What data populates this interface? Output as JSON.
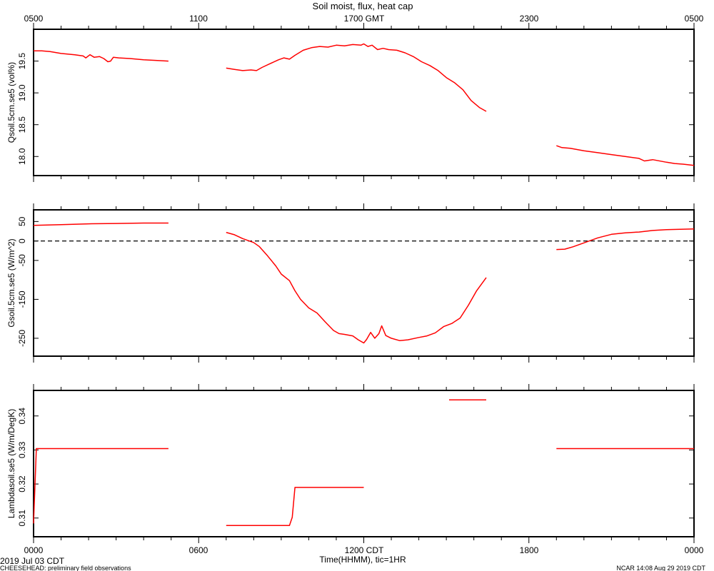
{
  "title": "Soil moist, flux, heat cap",
  "top_axis": {
    "labels": [
      "0500",
      "1100",
      "1700 GMT",
      "2300",
      "0500"
    ]
  },
  "bottom_axis": {
    "labels": [
      "0000",
      "0600",
      "1200 CDT",
      "1800",
      "0000"
    ],
    "label": "Time(HHMM), tic=1HR"
  },
  "footer": {
    "date": "2019 Jul 03 CDT",
    "project": "CHEESEHEAD: preliminary field observations",
    "stamp": "NCAR 14:08 Aug 29 2019 CDT"
  },
  "colors": {
    "series": "#ff0000",
    "axes": "#000000"
  },
  "chart_data": [
    {
      "type": "line",
      "ylabel": "Qsoil.5cm.se5 (vol%)",
      "x_unit": "hours since 0000 CDT",
      "xlim": [
        0,
        24
      ],
      "ylim": [
        17.7,
        20.0
      ],
      "yticks": [
        18.0,
        18.5,
        19.0,
        19.5
      ],
      "ytick_labels": [
        "18.0",
        "18.5",
        "19.0",
        "19.5"
      ],
      "segments": [
        [
          [
            0.0,
            19.66
          ],
          [
            0.3,
            19.66
          ],
          [
            0.6,
            19.65
          ],
          [
            1.0,
            19.62
          ],
          [
            1.5,
            19.6
          ],
          [
            1.8,
            19.58
          ],
          [
            1.9,
            19.55
          ],
          [
            2.05,
            19.6
          ],
          [
            2.2,
            19.56
          ],
          [
            2.4,
            19.57
          ],
          [
            2.55,
            19.54
          ],
          [
            2.7,
            19.49
          ],
          [
            2.8,
            19.5
          ],
          [
            2.9,
            19.56
          ],
          [
            3.1,
            19.55
          ],
          [
            3.5,
            19.54
          ],
          [
            4.0,
            19.52
          ],
          [
            4.5,
            19.51
          ],
          [
            4.9,
            19.5
          ]
        ],
        [
          [
            7.0,
            19.39
          ],
          [
            7.3,
            19.37
          ],
          [
            7.6,
            19.35
          ],
          [
            7.9,
            19.36
          ],
          [
            8.1,
            19.35
          ],
          [
            8.3,
            19.4
          ],
          [
            8.6,
            19.46
          ],
          [
            8.9,
            19.52
          ],
          [
            9.1,
            19.55
          ],
          [
            9.3,
            19.53
          ],
          [
            9.5,
            19.59
          ],
          [
            9.8,
            19.67
          ],
          [
            10.1,
            19.71
          ],
          [
            10.4,
            19.73
          ],
          [
            10.7,
            19.72
          ],
          [
            11.0,
            19.75
          ],
          [
            11.3,
            19.74
          ],
          [
            11.6,
            19.76
          ],
          [
            11.9,
            19.75
          ],
          [
            12.0,
            19.77
          ],
          [
            12.15,
            19.73
          ],
          [
            12.3,
            19.75
          ],
          [
            12.5,
            19.68
          ],
          [
            12.7,
            19.7
          ],
          [
            12.9,
            19.68
          ],
          [
            13.2,
            19.67
          ],
          [
            13.5,
            19.63
          ],
          [
            13.8,
            19.57
          ],
          [
            14.1,
            19.49
          ],
          [
            14.4,
            19.43
          ],
          [
            14.7,
            19.35
          ],
          [
            15.0,
            19.24
          ],
          [
            15.3,
            19.16
          ],
          [
            15.6,
            19.05
          ],
          [
            15.9,
            18.88
          ],
          [
            16.2,
            18.77
          ],
          [
            16.45,
            18.71
          ]
        ],
        [
          [
            19.0,
            18.17
          ],
          [
            19.2,
            18.14
          ],
          [
            19.5,
            18.13
          ],
          [
            20.0,
            18.09
          ],
          [
            20.5,
            18.06
          ],
          [
            21.0,
            18.03
          ],
          [
            21.5,
            18.0
          ],
          [
            22.0,
            17.97
          ],
          [
            22.2,
            17.93
          ],
          [
            22.5,
            17.95
          ],
          [
            23.0,
            17.91
          ],
          [
            23.3,
            17.89
          ],
          [
            23.6,
            17.88
          ],
          [
            24.0,
            17.86
          ]
        ]
      ]
    },
    {
      "type": "line",
      "ylabel": "Gsoil.5cm.se5 (W/m^2)",
      "x_unit": "hours since 0000 CDT",
      "xlim": [
        0,
        24
      ],
      "ylim": [
        -296,
        80
      ],
      "yticks": [
        50,
        0,
        -50,
        -150,
        -250
      ],
      "ytick_labels": [
        "50",
        "0",
        "-50",
        "-150",
        "-250"
      ],
      "zero_line": 0,
      "segments": [
        [
          [
            0.0,
            40
          ],
          [
            0.5,
            41
          ],
          [
            1.0,
            42
          ],
          [
            2.0,
            44
          ],
          [
            3.0,
            45
          ],
          [
            4.0,
            46
          ],
          [
            4.9,
            46
          ]
        ],
        [
          [
            7.0,
            22
          ],
          [
            7.3,
            16
          ],
          [
            7.6,
            6
          ],
          [
            8.0,
            -4
          ],
          [
            8.2,
            -14
          ],
          [
            8.5,
            -38
          ],
          [
            8.8,
            -64
          ],
          [
            9.0,
            -85
          ],
          [
            9.3,
            -102
          ],
          [
            9.5,
            -128
          ],
          [
            9.7,
            -150
          ],
          [
            10.0,
            -172
          ],
          [
            10.3,
            -185
          ],
          [
            10.6,
            -208
          ],
          [
            10.9,
            -230
          ],
          [
            11.1,
            -238
          ],
          [
            11.3,
            -240
          ],
          [
            11.6,
            -244
          ],
          [
            11.8,
            -254
          ],
          [
            12.0,
            -262
          ],
          [
            12.1,
            -253
          ],
          [
            12.25,
            -235
          ],
          [
            12.4,
            -250
          ],
          [
            12.55,
            -238
          ],
          [
            12.65,
            -218
          ],
          [
            12.8,
            -243
          ],
          [
            13.0,
            -250
          ],
          [
            13.3,
            -256
          ],
          [
            13.6,
            -254
          ],
          [
            14.0,
            -248
          ],
          [
            14.3,
            -244
          ],
          [
            14.6,
            -236
          ],
          [
            14.9,
            -220
          ],
          [
            15.2,
            -212
          ],
          [
            15.5,
            -198
          ],
          [
            15.8,
            -165
          ],
          [
            16.1,
            -128
          ],
          [
            16.45,
            -94
          ]
        ]
      ],
      "segments_b": [
        [
          [
            19.0,
            -22
          ],
          [
            19.3,
            -21
          ],
          [
            19.6,
            -15
          ],
          [
            20.0,
            -5
          ],
          [
            20.5,
            8
          ],
          [
            21.0,
            17
          ],
          [
            21.5,
            21
          ],
          [
            22.0,
            23
          ],
          [
            22.5,
            27
          ],
          [
            23.0,
            29
          ],
          [
            23.5,
            30
          ],
          [
            24.0,
            31
          ]
        ]
      ]
    },
    {
      "type": "line",
      "ylabel": "Lambdasoil.se5 (W/m/DegK)",
      "x_unit": "hours since 0000 CDT",
      "xlim": [
        0,
        24
      ],
      "ylim": [
        0.3045,
        0.3475
      ],
      "yticks": [
        0.31,
        0.32,
        0.33,
        0.34
      ],
      "ytick_labels": [
        "0.31",
        "0.32",
        "0.33",
        "0.34"
      ],
      "segments": [
        [
          [
            0.0,
            0.3084
          ],
          [
            0.1,
            0.3304
          ],
          [
            4.9,
            0.3304
          ]
        ],
        [
          [
            7.0,
            0.3078
          ],
          [
            9.3,
            0.3078
          ],
          [
            9.4,
            0.3102
          ],
          [
            9.5,
            0.319
          ],
          [
            12.0,
            0.319
          ]
        ],
        [
          [
            15.1,
            0.3447
          ],
          [
            16.45,
            0.3447
          ]
        ],
        [
          [
            19.0,
            0.3304
          ],
          [
            24.0,
            0.3304
          ]
        ]
      ]
    }
  ]
}
